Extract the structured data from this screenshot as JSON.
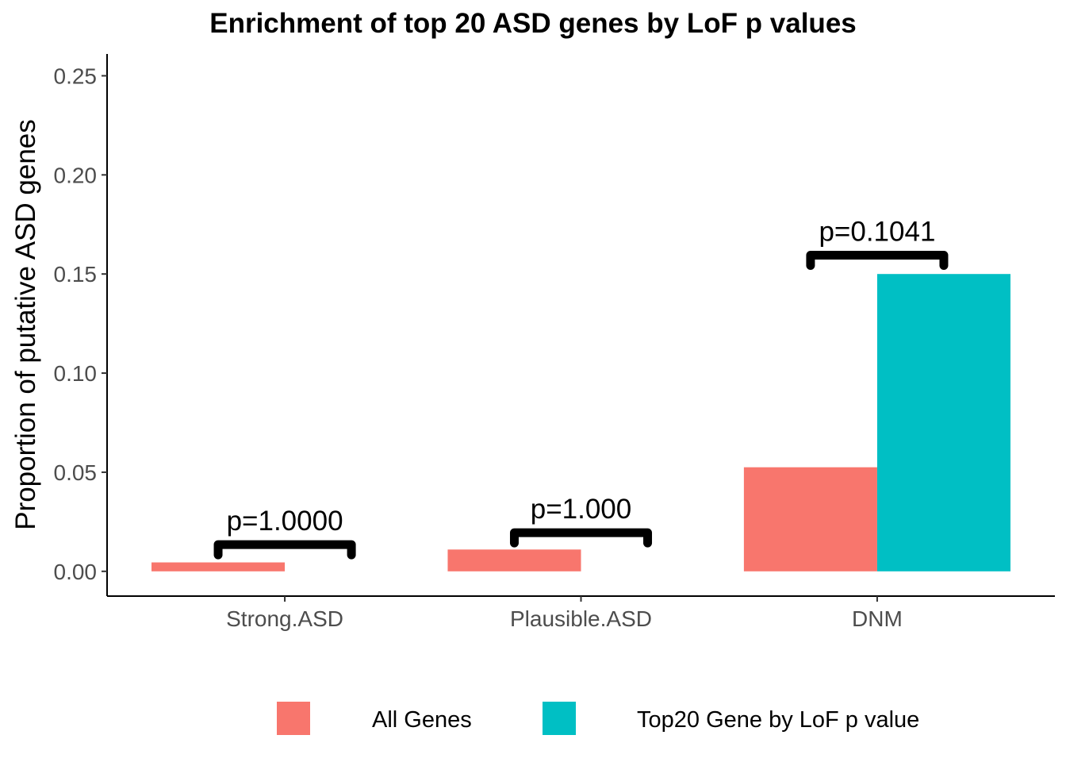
{
  "chart_data": {
    "type": "bar",
    "title": "Enrichment of top 20 ASD genes by LoF p values",
    "xlabel": "",
    "ylabel": "Proportion of putative ASD genes",
    "categories": [
      "Strong.ASD",
      "Plausible.ASD",
      "DNM"
    ],
    "series": [
      {
        "name": "All Genes",
        "color": "#F8766D",
        "values": [
          0.0045,
          0.011,
          0.0525
        ]
      },
      {
        "name": "Top20 Gene by LoF p value",
        "color": "#00BFC4",
        "values": [
          0,
          0,
          0.15
        ]
      }
    ],
    "ylim": [
      -0.0125,
      0.261
    ],
    "yticks": [
      0.0,
      0.05,
      0.1,
      0.15,
      0.2,
      0.25
    ],
    "ytick_labels": [
      "0.00",
      "0.05",
      "0.10",
      "0.15",
      "0.20",
      "0.25"
    ],
    "annotations": [
      {
        "category": "Strong.ASD",
        "text": "p=1.0000",
        "y": 0.0135
      },
      {
        "category": "Plausible.ASD",
        "text": "p=1.000",
        "y": 0.0195
      },
      {
        "category": "DNM",
        "text": "p=0.1041",
        "y": 0.1595
      }
    ],
    "grid": false,
    "legend_position": "bottom"
  }
}
